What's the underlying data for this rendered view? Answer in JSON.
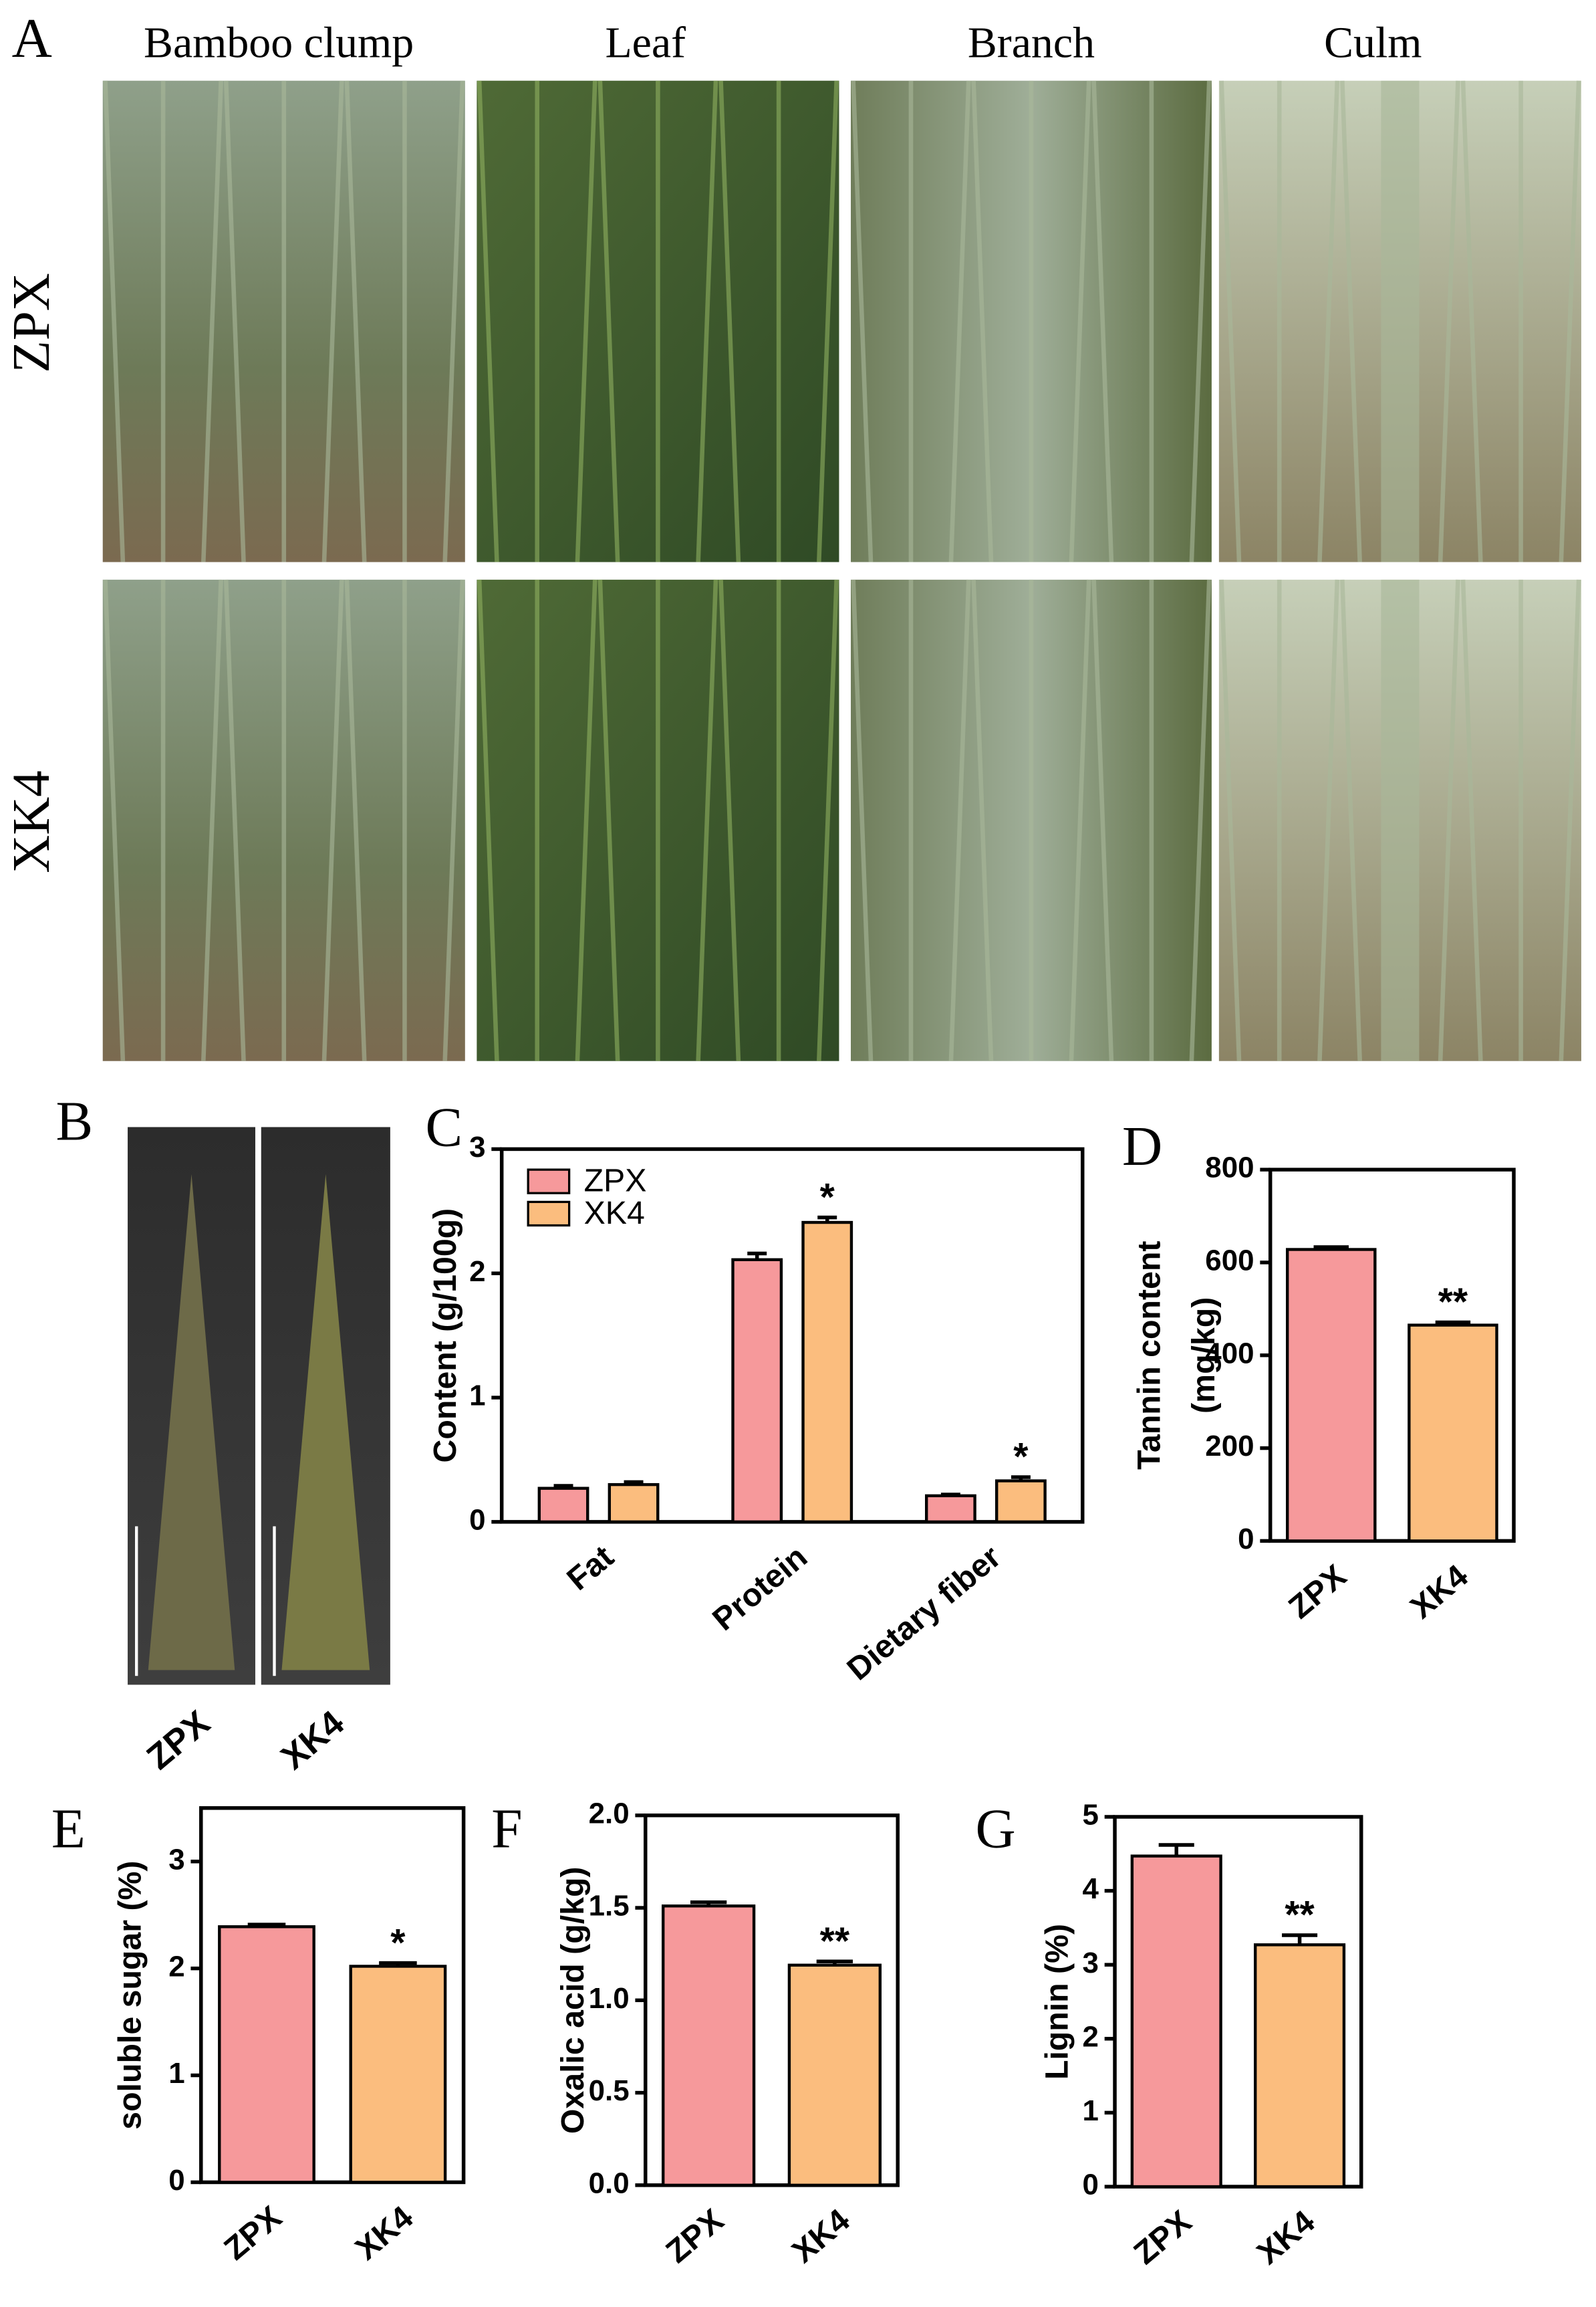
{
  "photo_panel": {
    "label": "A",
    "column_headers": [
      "Bamboo clump",
      "Leaf",
      "Branch",
      "Culm"
    ],
    "row_labels": [
      "ZPX",
      "XK4"
    ]
  },
  "shoot_panel": {
    "label": "B",
    "labels": [
      "ZPX",
      "XK4"
    ]
  },
  "chart_data": [
    {
      "type": "grouped_bar",
      "label": "C",
      "y_label": "Content (g/100g)",
      "categories": [
        "Fat",
        "Protein",
        "Dietary fiber"
      ],
      "series": [
        {
          "name": "ZPX",
          "color": "#f6999b",
          "values": [
            0.27,
            2.11,
            0.21
          ],
          "errors": [
            0.02,
            0.05,
            0.01
          ],
          "significance": [
            null,
            null,
            null
          ]
        },
        {
          "name": "XK4",
          "color": "#fbbd7e",
          "values": [
            0.3,
            2.41,
            0.33
          ],
          "errors": [
            0.02,
            0.04,
            0.03
          ],
          "significance": [
            null,
            "*",
            "*"
          ]
        }
      ],
      "ylim": [
        0,
        3
      ],
      "yticks": [
        0,
        1,
        2,
        3
      ],
      "legend": "upper left"
    },
    {
      "type": "bar",
      "label": "D",
      "y_label": [
        "Tannin content",
        "(mg/kg)"
      ],
      "categories": [
        "ZPX",
        "XK4"
      ],
      "values": [
        628,
        465
      ],
      "errors": [
        5,
        6
      ],
      "colors": [
        "#f6999b",
        "#fbbd7e"
      ],
      "significance": [
        null,
        "**"
      ],
      "ylim": [
        0,
        800
      ],
      "yticks": [
        0,
        200,
        400,
        600,
        800
      ]
    },
    {
      "type": "bar",
      "label": "E",
      "y_label": "soluble sugar (%)",
      "categories": [
        "ZPX",
        "XK4"
      ],
      "values": [
        2.39,
        2.02
      ],
      "errors": [
        0.02,
        0.03
      ],
      "colors": [
        "#f6999b",
        "#fbbd7e"
      ],
      "significance": [
        null,
        "*"
      ],
      "ylim": [
        0,
        3.5
      ],
      "yticks": [
        0,
        1,
        2,
        3
      ]
    },
    {
      "type": "bar",
      "label": "F",
      "y_label": "Oxalic acid (g/kg)",
      "categories": [
        "ZPX",
        "XK4"
      ],
      "values": [
        1.51,
        1.19
      ],
      "errors": [
        0.02,
        0.02
      ],
      "colors": [
        "#f6999b",
        "#fbbd7e"
      ],
      "significance": [
        null,
        "**"
      ],
      "ylim": [
        0,
        2
      ],
      "yticks": [
        {
          "value": 0,
          "label": "0.0"
        },
        {
          "value": 0.5,
          "label": "0.5"
        },
        {
          "value": 1,
          "label": "1.0"
        },
        {
          "value": 1.5,
          "label": "1.5"
        },
        {
          "value": 2,
          "label": "2.0"
        }
      ]
    },
    {
      "type": "bar",
      "label": "G",
      "y_label": "Lignin (%)",
      "categories": [
        "ZPX",
        "XK4"
      ],
      "values": [
        4.47,
        3.27
      ],
      "errors": [
        0.15,
        0.13
      ],
      "colors": [
        "#f6999b",
        "#fbbd7e"
      ],
      "significance": [
        null,
        "**"
      ],
      "ylim": [
        0,
        5
      ],
      "yticks": [
        0,
        1,
        2,
        3,
        4,
        5
      ]
    }
  ]
}
